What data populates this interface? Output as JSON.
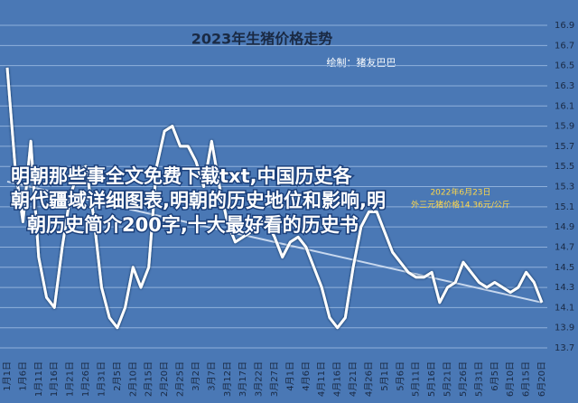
{
  "chart_data": {
    "type": "line",
    "title": "2023年生猪价格走势",
    "subtitle": "绘制：猪友巴巴",
    "categories": [
      "1月1日",
      null,
      "1月6日",
      null,
      "1月11日",
      null,
      "1月16日",
      null,
      "1月21日",
      null,
      "1月26日",
      null,
      "1月31日",
      null,
      "2月5日",
      null,
      "2月10日",
      null,
      "2月15日",
      null,
      "2月20日",
      null,
      "2月25日",
      null,
      "3月2日",
      null,
      "3月7日",
      null,
      "3月12日",
      null,
      "3月17日",
      null,
      "3月22日",
      null,
      "3月27日",
      null,
      "4月1日",
      null,
      "4月6日",
      null,
      "4月11日",
      null,
      "4月16日",
      null,
      "4月21日",
      null,
      "4月26日",
      null,
      "5月1日",
      null,
      "5月6日",
      null,
      "5月11日",
      null,
      "5月16日",
      null,
      "5月21日",
      null,
      "5月26日",
      null,
      "5月31日",
      null,
      "6月5日",
      null,
      "6月10日",
      null,
      "6月15日",
      null,
      "6月20日"
    ],
    "series": [
      {
        "color": "#ffffff",
        "values": [
          16.48,
          15.5,
          14.95,
          15.75,
          14.6,
          14.2,
          14.1,
          14.7,
          15.2,
          15.45,
          15.5,
          15.0,
          14.3,
          14.0,
          13.9,
          14.1,
          14.5,
          14.3,
          14.5,
          15.5,
          15.85,
          15.9,
          15.7,
          15.7,
          15.55,
          15.3,
          15.75,
          15.3,
          14.95,
          14.75,
          14.8,
          14.85,
          14.95,
          14.95,
          14.8,
          14.6,
          14.75,
          14.8,
          14.7,
          14.5,
          14.3,
          14.0,
          13.9,
          14.0,
          14.5,
          14.9,
          15.05,
          15.05,
          14.85,
          14.65,
          14.55,
          14.45,
          14.4,
          14.4,
          14.45,
          14.15,
          14.3,
          14.35,
          14.55,
          14.45,
          14.35,
          14.3,
          14.35,
          14.3,
          14.25,
          14.3,
          14.45,
          14.35,
          14.15
        ]
      }
    ],
    "trendline": [
      15.35,
      14.15
    ],
    "ylim": [
      13.7,
      16.9
    ],
    "yticks": [
      13.7,
      13.9,
      14.1,
      14.3,
      14.5,
      14.7,
      14.9,
      15.1,
      15.3,
      15.5,
      15.7,
      15.9,
      16.1,
      16.3,
      16.5,
      16.7,
      16.9
    ],
    "grid": true,
    "background": "#4a78b5",
    "annotations": [
      "2022年6月23日",
      "外三元猪价格14.36元/公斤"
    ]
  },
  "overlay": {
    "lines": [
      "明朝那些事全文免费下载txt,中国历史各",
      "朝代疆域详细图表,明朝的历史地位和影响,明",
      "朝历史简介200字,十大最好看的历史书"
    ]
  }
}
